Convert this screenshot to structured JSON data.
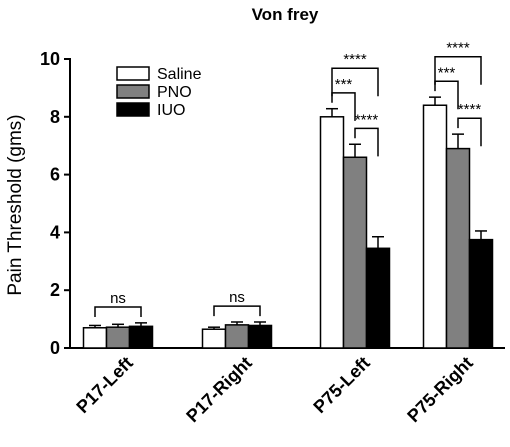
{
  "chart_data": {
    "type": "bar",
    "title": "Von frey",
    "xlabel": "",
    "ylabel": "Pain Threshold (gms)",
    "ylim": [
      0,
      10
    ],
    "yticks": [
      0,
      2,
      4,
      6,
      8,
      10
    ],
    "categories": [
      "P17-Left",
      "P17-Right",
      "P75-Left",
      "P75-Right"
    ],
    "series": [
      {
        "name": "Saline",
        "color": "#ffffff",
        "values": [
          0.7,
          0.65,
          8.0,
          8.4
        ],
        "errors": [
          0.08,
          0.07,
          0.28,
          0.28
        ]
      },
      {
        "name": "PNO",
        "color": "#808080",
        "values": [
          0.72,
          0.8,
          6.6,
          6.9
        ],
        "errors": [
          0.1,
          0.1,
          0.45,
          0.5
        ]
      },
      {
        "name": "IUO",
        "color": "#000000",
        "values": [
          0.75,
          0.78,
          3.45,
          3.75
        ],
        "errors": [
          0.12,
          0.12,
          0.4,
          0.3
        ]
      }
    ],
    "legend": {
      "position": "top-left"
    },
    "grid": false,
    "annotations": [
      {
        "category": 0,
        "from": 0,
        "to": 2,
        "label": "ns"
      },
      {
        "category": 1,
        "from": 0,
        "to": 2,
        "label": "ns"
      },
      {
        "category": 2,
        "from": 0,
        "to": 2,
        "label": "****"
      },
      {
        "category": 2,
        "from": 0,
        "to": 1,
        "label": "***"
      },
      {
        "category": 2,
        "from": 1,
        "to": 2,
        "label": "****"
      },
      {
        "category": 3,
        "from": 0,
        "to": 2,
        "label": "****"
      },
      {
        "category": 3,
        "from": 0,
        "to": 1,
        "label": "***"
      },
      {
        "category": 3,
        "from": 1,
        "to": 2,
        "label": "****"
      }
    ]
  }
}
